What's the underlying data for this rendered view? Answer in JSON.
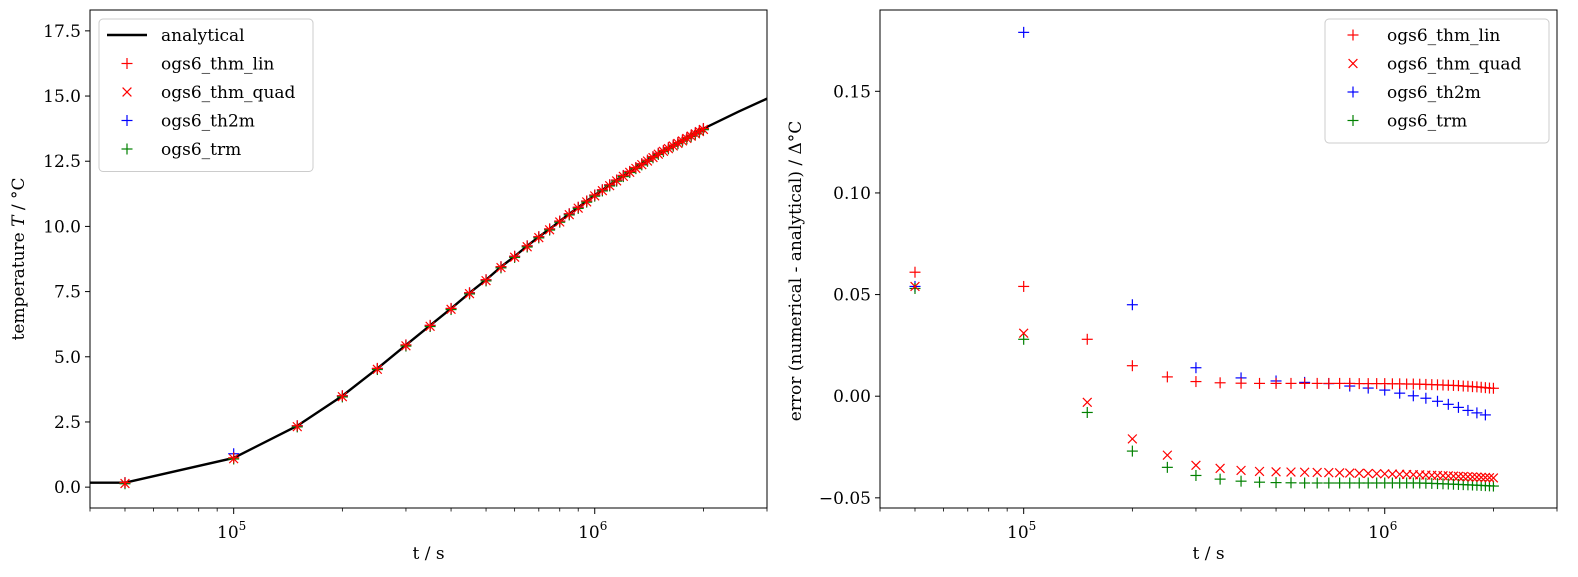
{
  "chart_data": [
    {
      "type": "line",
      "xscale": "log",
      "xlim": [
        40000,
        3000000
      ],
      "ylim": [
        -0.8,
        18.3
      ],
      "xlabel": "t / s",
      "ylabel": "temperature T / °C",
      "ylabel_prefix": "temperature ",
      "ylabel_var": "T",
      "ylabel_unit": " / °C",
      "xticks": [
        {
          "value": 100000,
          "base": "10",
          "exp": "5"
        },
        {
          "value": 1000000,
          "base": "10",
          "exp": "6"
        }
      ],
      "yticks": [
        0,
        2.5,
        5,
        7.5,
        10,
        12.5,
        15,
        17.5
      ],
      "ytick_labels": [
        "0.0",
        "2.5",
        "5.0",
        "7.5",
        "10.0",
        "12.5",
        "15.0",
        "17.5"
      ],
      "legend_loc": "upper-left",
      "legend": [
        "analytical",
        "ogs6_thm_lin",
        "ogs6_thm_quad",
        "ogs6_th2m",
        "ogs6_trm"
      ],
      "analytical": {
        "name": "analytical",
        "color": "#000000",
        "x": [
          40000,
          50000,
          100000,
          150000,
          200000,
          250000,
          300000,
          350000,
          400000,
          450000,
          500000,
          550000,
          600000,
          650000,
          700000,
          750000,
          800000,
          850000,
          900000,
          950000,
          1000000,
          1200000,
          1500000,
          2000000,
          2500000,
          3000000
        ],
        "y": [
          0.17,
          0.17,
          1.12,
          2.35,
          3.5,
          4.55,
          5.45,
          6.2,
          6.85,
          7.45,
          7.95,
          8.45,
          8.85,
          9.25,
          9.6,
          9.9,
          10.2,
          10.48,
          10.73,
          10.97,
          11.2,
          11.95,
          12.8,
          13.75,
          14.4,
          14.9
        ]
      },
      "series": [
        {
          "name": "ogs6_thm_lin",
          "marker": "plus",
          "color": "#ff0000",
          "x_from": 50000,
          "x_step": 50000,
          "count": 40,
          "y_source": "analytical",
          "y_offset": 0.006
        },
        {
          "name": "ogs6_thm_quad",
          "marker": "cross",
          "color": "#ff0000",
          "x_from": 50000,
          "x_step": 50000,
          "count": 40,
          "y_source": "analytical",
          "y_offset": -0.03
        },
        {
          "name": "ogs6_th2m",
          "marker": "plus",
          "color": "#0000ff",
          "x_from": 50000,
          "x_step": 50000,
          "count": 40,
          "y_source": "analytical",
          "y_offset": 0.0,
          "overrides": {
            "100000": 1.28
          }
        },
        {
          "name": "ogs6_trm",
          "marker": "plus",
          "color": "#008000",
          "x_from": 50000,
          "x_step": 50000,
          "count": 40,
          "y_source": "analytical",
          "y_offset": -0.04
        }
      ]
    },
    {
      "type": "scatter",
      "xscale": "log",
      "xlim": [
        40000,
        3000000
      ],
      "ylim": [
        -0.055,
        0.19
      ],
      "xlabel": "t / s",
      "ylabel": "error (numerical - analytical) / Δ°C",
      "xticks": [
        {
          "value": 100000,
          "base": "10",
          "exp": "5"
        },
        {
          "value": 1000000,
          "base": "10",
          "exp": "6"
        }
      ],
      "yticks": [
        -0.05,
        0.0,
        0.05,
        0.1,
        0.15
      ],
      "ytick_labels": [
        "−0.05",
        "0.00",
        "0.05",
        "0.10",
        "0.15"
      ],
      "legend_loc": "upper-right",
      "legend": [
        "ogs6_thm_lin",
        "ogs6_thm_quad",
        "ogs6_th2m",
        "ogs6_trm"
      ],
      "x": [
        50000,
        100000,
        150000,
        200000,
        250000,
        300000,
        350000,
        400000,
        450000,
        500000,
        550000,
        600000,
        650000,
        700000,
        750000,
        800000,
        850000,
        900000,
        950000,
        1000000,
        1050000,
        1100000,
        1150000,
        1200000,
        1250000,
        1300000,
        1350000,
        1400000,
        1450000,
        1500000,
        1550000,
        1600000,
        1650000,
        1700000,
        1750000,
        1800000,
        1850000,
        1900000,
        1950000,
        2000000
      ],
      "series": [
        {
          "name": "ogs6_thm_lin",
          "marker": "plus",
          "color": "#ff0000",
          "y": [
            0.061,
            0.054,
            0.028,
            0.015,
            0.0095,
            0.0072,
            0.0066,
            0.0064,
            0.0063,
            0.0063,
            0.0063,
            0.0063,
            0.0063,
            0.0063,
            0.0063,
            0.0063,
            0.0062,
            0.0062,
            0.0062,
            0.0062,
            0.0061,
            0.0061,
            0.006,
            0.006,
            0.0059,
            0.0058,
            0.0057,
            0.0056,
            0.0055,
            0.0054,
            0.0053,
            0.0052,
            0.005,
            0.0049,
            0.0047,
            0.0046,
            0.0044,
            0.0042,
            0.004,
            0.0039
          ]
        },
        {
          "name": "ogs6_thm_quad",
          "marker": "cross",
          "color": "#ff0000",
          "y": [
            0.054,
            0.031,
            -0.003,
            -0.021,
            -0.029,
            -0.034,
            -0.0355,
            -0.0365,
            -0.037,
            -0.0372,
            -0.0373,
            -0.0374,
            -0.0375,
            -0.0376,
            -0.0377,
            -0.0378,
            -0.0379,
            -0.038,
            -0.0381,
            -0.0382,
            -0.0383,
            -0.0384,
            -0.0385,
            -0.0386,
            -0.0387,
            -0.0388,
            -0.0389,
            -0.039,
            -0.0391,
            -0.0392,
            -0.0393,
            -0.0394,
            -0.0395,
            -0.0396,
            -0.0397,
            -0.0398,
            -0.0399,
            -0.04,
            -0.0401,
            -0.0402
          ]
        },
        {
          "name": "ogs6_th2m",
          "marker": "plus",
          "color": "#0000ff",
          "y": [
            0.054,
            0.179,
            null,
            0.045,
            null,
            0.014,
            null,
            0.009,
            null,
            0.0075,
            null,
            0.0068,
            null,
            0.0062,
            null,
            0.005,
            null,
            0.004,
            null,
            0.003,
            null,
            0.0015,
            null,
            0.0002,
            null,
            -0.001,
            null,
            -0.0025,
            null,
            -0.004,
            null,
            -0.0055,
            null,
            -0.007,
            null,
            -0.0082,
            null,
            -0.0092,
            null,
            null
          ]
        },
        {
          "name": "ogs6_trm",
          "marker": "plus",
          "color": "#008000",
          "y": [
            0.053,
            0.028,
            -0.008,
            -0.027,
            -0.035,
            -0.039,
            -0.0408,
            -0.0418,
            -0.0423,
            -0.0425,
            -0.0426,
            -0.0427,
            -0.0427,
            -0.0427,
            -0.0427,
            -0.0427,
            -0.0427,
            -0.0427,
            -0.0427,
            -0.0427,
            -0.0427,
            -0.0427,
            -0.0427,
            -0.0427,
            -0.0427,
            -0.0428,
            -0.0429,
            -0.043,
            -0.0431,
            -0.0432,
            -0.0433,
            -0.0434,
            -0.0435,
            -0.0436,
            -0.0437,
            -0.0438,
            -0.0439,
            -0.044,
            -0.0441,
            -0.0442
          ]
        }
      ]
    }
  ]
}
